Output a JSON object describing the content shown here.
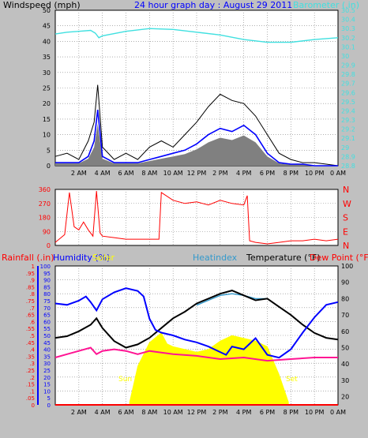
{
  "header": {
    "title": "24 hour graph day : August 29 2011",
    "windspeed_label": "Windspeed (mph)",
    "barometer_label": "Barometer (.in)"
  },
  "direction_labels": [
    "N",
    "W",
    "S",
    "E",
    "N"
  ],
  "bottom_labels": {
    "rainfall": "Rainfall (.in)",
    "humidity": "Humidity (%)",
    "solar": "Solar",
    "heatindex": "Heatindex",
    "temperature": "Temperature (°F)",
    "dewpoint": "Dew Point (°F)",
    "sunrise": "Sun Rise",
    "sunset": "Set"
  },
  "colors": {
    "background": "#c0c0c0",
    "plot_bg": "#ffffff",
    "wind": "#000000",
    "wind_avg": "#0000ff",
    "wind_gust_fill": "#808080",
    "barometer": "#40e0e0",
    "direction": "#ff0000",
    "temperature": "#000000",
    "dewpoint": "#ff1493",
    "humidity": "#0000ff",
    "heatindex": "#3399cc",
    "solar": "#ffff00",
    "rain": "#ff0000"
  },
  "chart_data": [
    {
      "type": "line",
      "title": "24 hour graph day : August 29 2011",
      "x_ticks": [
        "2 AM",
        "4 AM",
        "6 AM",
        "8 AM",
        "10 AM",
        "12 PM",
        "2 PM",
        "4 PM",
        "6 PM",
        "8 PM",
        "10 PM",
        "0 AM"
      ],
      "left_axis": {
        "label": "Windspeed (mph)",
        "range": [
          0,
          50
        ],
        "ticks": [
          0,
          5,
          10,
          15,
          20,
          25,
          30,
          35,
          40,
          45,
          50
        ]
      },
      "right_axis": {
        "label": "Barometer (.in)",
        "range": [
          28.8,
          30.5
        ],
        "ticks": [
          "28.8",
          "28.9",
          "29",
          "29.1",
          "29.2",
          "29.3",
          "29.4",
          "29.5",
          "29.6",
          "29.7",
          "29.8",
          "29.9",
          "30",
          "30.1",
          "30.2",
          "30.3",
          "30.4",
          "30.5"
        ]
      },
      "series": [
        {
          "name": "Windspeed",
          "axis": "left",
          "x": [
            0,
            1,
            2,
            2.8,
            3.3,
            3.6,
            4,
            5,
            6,
            7,
            8,
            9,
            10,
            11,
            12,
            13,
            14,
            15,
            16,
            17,
            18,
            19,
            20,
            21,
            22,
            23,
            24
          ],
          "y": [
            3,
            4,
            2,
            8,
            14,
            26,
            6,
            2,
            4,
            2,
            6,
            8,
            6,
            10,
            14,
            19,
            23,
            21,
            20,
            16,
            10,
            4,
            2,
            1,
            1,
            0.5,
            0
          ]
        },
        {
          "name": "Wind average",
          "axis": "left",
          "x": [
            0,
            1,
            2,
            2.8,
            3.3,
            3.6,
            4,
            5,
            6,
            7,
            8,
            9,
            10,
            11,
            12,
            13,
            14,
            15,
            16,
            17,
            18,
            19,
            20,
            21,
            22,
            23,
            24
          ],
          "y": [
            1,
            1,
            1,
            3,
            8,
            18,
            3,
            1,
            1,
            1,
            2,
            3,
            4,
            5,
            7,
            10,
            12,
            11,
            13,
            10,
            4,
            1,
            0.5,
            0.5,
            0,
            0,
            0
          ]
        },
        {
          "name": "Barometer",
          "axis": "right",
          "x": [
            0,
            1,
            2,
            3,
            3.4,
            3.7,
            4,
            6,
            8,
            10,
            12,
            14,
            16,
            18,
            20,
            22,
            24
          ],
          "y": [
            30.24,
            30.26,
            30.27,
            30.28,
            30.25,
            30.2,
            30.22,
            30.27,
            30.3,
            30.29,
            30.26,
            30.23,
            30.18,
            30.15,
            30.15,
            30.18,
            30.2
          ]
        }
      ]
    },
    {
      "type": "line",
      "title": "",
      "left_axis": {
        "range": [
          0,
          360
        ],
        "ticks": [
          0,
          90,
          180,
          270,
          360
        ]
      },
      "right_labels": [
        "N",
        "W",
        "S",
        "E",
        "N"
      ],
      "series": [
        {
          "name": "Wind direction",
          "x": [
            0,
            0.8,
            1.2,
            1.6,
            2,
            2.4,
            2.8,
            3.2,
            3.5,
            3.8,
            4,
            5,
            6,
            7,
            8,
            8.8,
            9,
            10,
            11,
            12,
            13,
            14,
            15,
            16,
            16.3,
            16.5,
            17,
            18,
            19,
            20,
            21,
            22,
            23,
            24
          ],
          "y": [
            20,
            70,
            340,
            120,
            100,
            150,
            100,
            60,
            350,
            80,
            60,
            50,
            40,
            40,
            40,
            40,
            340,
            290,
            270,
            280,
            260,
            290,
            270,
            260,
            320,
            30,
            20,
            10,
            20,
            30,
            30,
            40,
            30,
            40
          ]
        }
      ]
    },
    {
      "type": "line",
      "title": "",
      "x_ticks": [
        "2 AM",
        "4 AM",
        "6 AM",
        "8 AM",
        "10 AM",
        "12 PM",
        "2 PM",
        "4 PM",
        "6 PM",
        "8 PM",
        "10 PM",
        "0 AM"
      ],
      "left_axis": {
        "label": "Humidity (%)",
        "range": [
          0,
          100
        ],
        "ticks": [
          0,
          5,
          10,
          15,
          20,
          25,
          30,
          35,
          40,
          45,
          50,
          55,
          60,
          65,
          70,
          75,
          80,
          85,
          90,
          95,
          100
        ]
      },
      "rain_axis": {
        "label": "Rainfall (.in)",
        "range": [
          0,
          1
        ],
        "ticks": [
          "0",
          ".05",
          ".1",
          ".15",
          ".2",
          ".25",
          ".3",
          ".35",
          ".4",
          ".45",
          ".5",
          ".55",
          ".6",
          ".65",
          ".7",
          ".75",
          ".8",
          ".85",
          ".9",
          ".95",
          "1"
        ]
      },
      "right_axis": {
        "label": "Temperature (°F)",
        "range": [
          15,
          100
        ],
        "ticks": [
          20,
          30,
          40,
          50,
          60,
          70,
          80,
          90,
          100
        ]
      },
      "sunrise_hour": 6.3,
      "sunset_hour": 19.8,
      "series": [
        {
          "name": "Temperature",
          "axis": "right",
          "x": [
            0,
            1,
            2,
            3,
            3.5,
            4,
            5,
            6,
            7,
            8,
            9,
            10,
            11,
            12,
            13,
            14,
            15,
            16,
            17,
            18,
            19,
            20,
            21,
            22,
            23,
            24
          ],
          "y": [
            56,
            57,
            60,
            64,
            68,
            62,
            54,
            50,
            52,
            56,
            62,
            68,
            72,
            77,
            80,
            83,
            85,
            82,
            79,
            80,
            75,
            70,
            64,
            59,
            56,
            55
          ]
        },
        {
          "name": "Dew Point",
          "axis": "right",
          "x": [
            0,
            1,
            2,
            3,
            3.5,
            4,
            5,
            6,
            7,
            8,
            9,
            10,
            12,
            14,
            16,
            18,
            20,
            22,
            24
          ],
          "y": [
            44,
            46,
            48,
            50,
            46,
            48,
            49,
            48,
            46,
            48,
            47,
            46,
            45,
            43,
            44,
            42,
            43,
            44,
            44
          ]
        },
        {
          "name": "Humidity",
          "axis": "left",
          "x": [
            0,
            1,
            2,
            2.6,
            3,
            3.5,
            4,
            5,
            6,
            7,
            7.5,
            8,
            8.5,
            9,
            10,
            11,
            12,
            13,
            14,
            14.5,
            15,
            16,
            17,
            18,
            19,
            20,
            21,
            22,
            23,
            24
          ],
          "y": [
            73,
            72,
            75,
            78,
            74,
            68,
            76,
            81,
            84,
            82,
            78,
            62,
            54,
            52,
            50,
            47,
            45,
            42,
            38,
            36,
            42,
            40,
            48,
            36,
            34,
            40,
            52,
            63,
            72,
            74
          ]
        },
        {
          "name": "Heatindex",
          "axis": "right",
          "x": [
            12,
            13,
            14,
            15,
            16,
            17,
            18
          ],
          "y": [
            76,
            79,
            82,
            83,
            82,
            80,
            80
          ]
        },
        {
          "name": "Solar",
          "axis": "left",
          "x": [
            6.3,
            7,
            8,
            9,
            9.5,
            10,
            11,
            12,
            13,
            14,
            15,
            16,
            17,
            18,
            19,
            19.8
          ],
          "y": [
            2,
            28,
            45,
            52,
            44,
            42,
            40,
            38,
            40,
            46,
            50,
            48,
            46,
            42,
            22,
            2
          ]
        },
        {
          "name": "Rainfall",
          "axis": "rain",
          "x": [
            0,
            24
          ],
          "y": [
            0,
            0
          ]
        }
      ]
    }
  ]
}
